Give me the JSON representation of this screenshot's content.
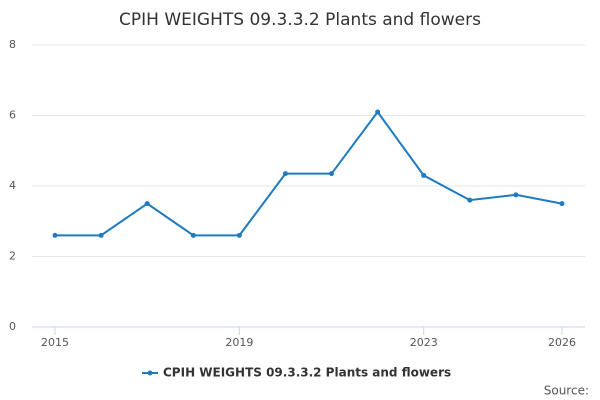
{
  "chart_data": {
    "type": "line",
    "title": "CPIH WEIGHTS 09.3.3.2 Plants and flowers",
    "x": [
      2015,
      2016,
      2017,
      2018,
      2019,
      2020,
      2021,
      2022,
      2023,
      2024,
      2025,
      2026
    ],
    "series": [
      {
        "name": "CPIH WEIGHTS 09.3.3.2 Plants and flowers",
        "color": "#1f7bbf",
        "values": [
          2.6,
          2.6,
          3.5,
          2.6,
          2.6,
          4.35,
          4.35,
          6.1,
          4.3,
          3.6,
          3.75,
          3.5
        ]
      }
    ],
    "xlim": [
      2014.5,
      2026.5
    ],
    "xticks": [
      2015,
      2019,
      2023,
      2026
    ],
    "ylim": [
      0,
      8
    ],
    "yticks": [
      0,
      2,
      4,
      6,
      8
    ],
    "grid": true,
    "source": "Source:"
  }
}
